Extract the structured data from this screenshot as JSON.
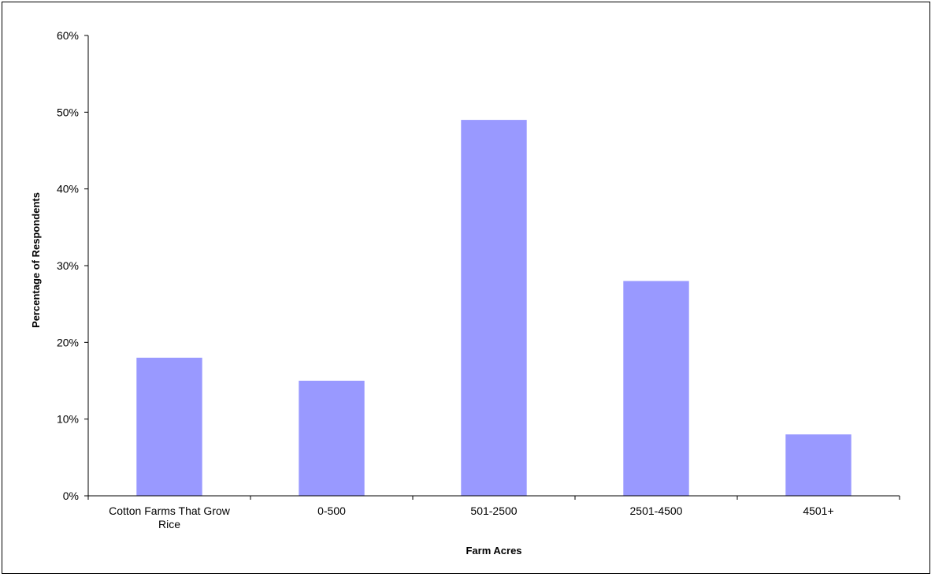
{
  "chart_data": {
    "type": "bar",
    "categories": [
      [
        "Cotton Farms That Grow",
        "Rice"
      ],
      [
        "0-500"
      ],
      [
        "501-2500"
      ],
      [
        "2501-4500"
      ],
      [
        "4501+"
      ]
    ],
    "values": [
      18,
      15,
      49,
      28,
      8
    ],
    "value_unit": "%",
    "title": "",
    "xlabel": "Farm Acres",
    "ylabel": "Percentage of Respondents",
    "ylim": [
      0,
      60
    ],
    "yticks": [
      0,
      10,
      20,
      30,
      40,
      50,
      60
    ],
    "ytick_labels": [
      "0%",
      "10%",
      "20%",
      "30%",
      "40%",
      "50%",
      "60%"
    ],
    "grid": false,
    "legend": "none",
    "colors": {
      "bar": "#9999ff",
      "axis": "#000000"
    }
  }
}
